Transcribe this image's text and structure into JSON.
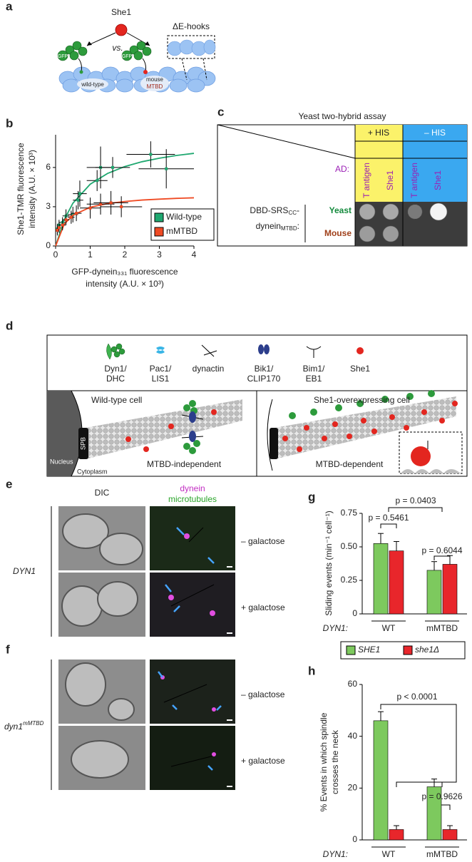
{
  "panel_labels": [
    "a",
    "b",
    "c",
    "d",
    "e",
    "f",
    "g",
    "h"
  ],
  "panel_a": {
    "she1": "She1",
    "vs": "vs.",
    "e_hooks": "ΔE-hooks",
    "gfp": "GFP",
    "wild_type": "wild-type",
    "mouse": "mouse",
    "mtbd": "MTBD"
  },
  "panel_c": {
    "title": "Yeast two-hybrid assay",
    "plus_his": "+ HIS",
    "minus_his": "– HIS",
    "ad": "AD:",
    "columns": [
      "T antigen",
      "She1",
      "T antigen",
      "She1"
    ],
    "row_title": [
      [
        "DBD-SRS",
        "CC",
        "-"
      ],
      [
        "dynein",
        "MTBD",
        ":"
      ]
    ],
    "rows": [
      "Yeast",
      "Mouse"
    ]
  },
  "panel_d": {
    "legend": [
      [
        "Dyn1/",
        "DHC"
      ],
      [
        "Pac1/",
        "LIS1"
      ],
      [
        "dynactin"
      ],
      [
        "Bik1/",
        "CLIP170"
      ],
      [
        "Bim1/",
        "EB1"
      ],
      [
        "She1"
      ]
    ],
    "left_title": "Wild-type cell",
    "right_title": "She1-overexpressing cell",
    "spb": "SPB",
    "nucleus": "Nucleus",
    "cytoplasm": "Cytoplasm",
    "left_mode": "MTBD-independent",
    "right_mode": "MTBD-dependent"
  },
  "panel_ef": {
    "dic": "DIC",
    "dynein": "dynein",
    "microtubules": "microtubules",
    "minus_gal": "– galactose",
    "plus_gal": "+ galactose",
    "dyn1": "DYN1",
    "dyn1_mut": [
      "dyn1",
      "mMTBD"
    ]
  },
  "chart_data": [
    {
      "type": "scatter",
      "x_label": [
        "GFP-dynein₃₃₁ fluorescence",
        "intensity (A.U. × 10³)"
      ],
      "y_label": [
        "She1-TMR fluorescence",
        "intensity (A.U. × 10³)"
      ],
      "xlim": [
        0,
        4
      ],
      "ylim": [
        0,
        8.5
      ],
      "xticks": [
        0,
        1,
        2,
        3,
        4
      ],
      "yticks": [
        0,
        3,
        6
      ],
      "legend": "lower right",
      "series": [
        {
          "name": "Wild-type",
          "color": "#1fa870",
          "x": [
            0.05,
            0.1,
            0.2,
            0.3,
            0.5,
            0.65,
            0.7,
            1.2,
            1.3,
            1.65,
            2.75,
            3.2
          ],
          "values": [
            1.3,
            1.6,
            1.8,
            2.3,
            2.4,
            3.5,
            4.0,
            5.0,
            6.0,
            6.0,
            7.0,
            5.9
          ],
          "x_err": [
            0.05,
            0.05,
            0.1,
            0.1,
            0.15,
            0.15,
            0.2,
            0.3,
            0.4,
            0.5,
            0.7,
            0.8
          ],
          "y_err": [
            0.4,
            0.4,
            0.4,
            0.5,
            0.6,
            0.7,
            1.0,
            0.8,
            1.6,
            0.8,
            1.0,
            1.5
          ],
          "fit": {
            "x": [
              0,
              0.25,
              0.5,
              1,
              1.5,
              2,
              2.5,
              3,
              3.5,
              4
            ],
            "values": [
              0,
              2.02,
              3.27,
              4.72,
              5.54,
              6.07,
              6.44,
              6.71,
              6.92,
              7.08
            ]
          }
        },
        {
          "name": "mMTBD",
          "color": "#ef4a23",
          "x": [
            0.05,
            0.1,
            0.2,
            0.3,
            0.45,
            0.6,
            1.0,
            1.3,
            1.6,
            1.9
          ],
          "values": [
            1.2,
            1.4,
            1.6,
            2.0,
            2.2,
            2.5,
            2.9,
            3.2,
            3.3,
            3.0
          ],
          "x_err": [
            0.05,
            0.05,
            0.1,
            0.1,
            0.1,
            0.15,
            0.3,
            0.4,
            0.5,
            0.6
          ],
          "y_err": [
            0.4,
            0.4,
            0.4,
            0.4,
            0.5,
            0.6,
            0.8,
            0.8,
            0.9,
            0.8
          ],
          "fit": {
            "x": [
              0,
              0.25,
              0.5,
              1,
              1.5,
              2,
              2.5,
              3,
              3.5,
              4
            ],
            "values": [
              0,
              1.67,
              2.35,
              2.96,
              3.24,
              3.4,
              3.51,
              3.58,
              3.64,
              3.68
            ]
          }
        }
      ]
    },
    {
      "type": "bar",
      "y_label": [
        "Sliding events (min⁻¹ cell⁻¹)"
      ],
      "category_title": "DYN1:",
      "categories": [
        "WT",
        "mMTBD"
      ],
      "ylim": [
        0,
        0.75
      ],
      "yticks": [
        0,
        0.25,
        {
          "value": 0.5,
          "label": "0.50"
        },
        0.75
      ],
      "series": [
        {
          "name": "SHE1",
          "color": "#7dc95e",
          "values": [
            0.525,
            0.325
          ],
          "errors": [
            0.075,
            0.065
          ]
        },
        {
          "name": "she1Δ",
          "color": "#e8262b",
          "values": [
            0.47,
            0.37
          ],
          "errors": [
            0.07,
            0.065
          ]
        }
      ],
      "annotations": [
        "p = 0.0403",
        "p = 0.5461",
        "p = 0.6044"
      ]
    },
    {
      "type": "bar",
      "y_label": [
        "% Events in which spindle",
        "crosses the neck"
      ],
      "category_title": "DYN1:",
      "categories": [
        "WT",
        "mMTBD"
      ],
      "ylim": [
        0,
        60
      ],
      "yticks": [
        0,
        20,
        40,
        60
      ],
      "series": [
        {
          "color": "#7dc95e",
          "values": [
            46,
            20.5
          ],
          "errors": [
            3.5,
            3
          ]
        },
        {
          "color": "#e8262b",
          "values": [
            4,
            4
          ],
          "errors": [
            1.5,
            1.5
          ]
        }
      ],
      "annotations": [
        "p < 0.0001",
        "p = 0.9626"
      ]
    }
  ]
}
